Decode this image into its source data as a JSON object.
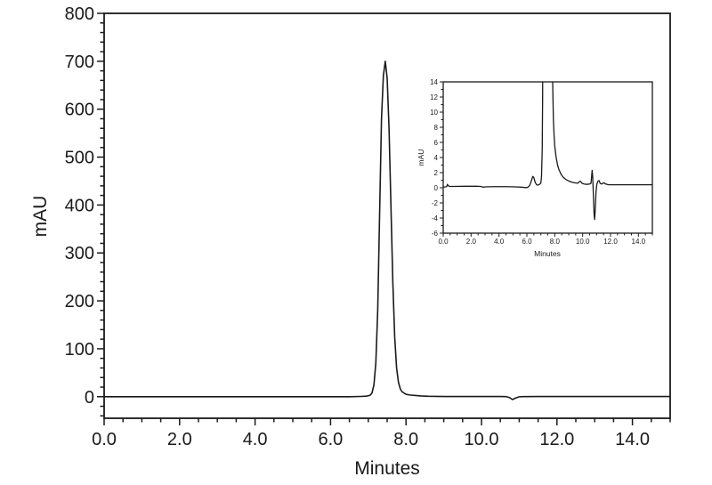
{
  "figure": {
    "background": "#ffffff",
    "line_color": "#1a1a1a",
    "description": "HPLC chromatogram with full-scale main plot and zoomed baseline inset"
  },
  "chart_data": [
    {
      "id": "main",
      "type": "line",
      "title": "",
      "xlabel": "Minutes",
      "ylabel": "mAU",
      "xlim": [
        0.0,
        15.0
      ],
      "ylim": [
        -45,
        800
      ],
      "grid": false,
      "legend": null,
      "x_major_ticks": [
        0,
        2,
        4,
        6,
        8,
        10,
        12,
        14
      ],
      "x_major_labels": [
        "0.0",
        "2.0",
        "4.0",
        "6.0",
        "8.0",
        "10.0",
        "12.0",
        "14.0"
      ],
      "x_minor_step": 0.5,
      "y_major_ticks": [
        0,
        100,
        200,
        300,
        400,
        500,
        600,
        700,
        800
      ],
      "y_major_labels": [
        "0",
        "100",
        "200",
        "300",
        "400",
        "500",
        "600",
        "700",
        "800"
      ],
      "y_minor_step": 20,
      "peaks": [
        {
          "retention_min": 7.45,
          "height_mau": 700
        },
        {
          "retention_min": 10.8,
          "height_mau": -6,
          "note": "small baseline dip"
        }
      ],
      "points": [
        [
          0.0,
          0
        ],
        [
          1.0,
          0
        ],
        [
          2.0,
          0
        ],
        [
          3.0,
          0
        ],
        [
          4.0,
          0
        ],
        [
          5.0,
          0
        ],
        [
          6.0,
          0
        ],
        [
          6.5,
          0
        ],
        [
          6.8,
          0.5
        ],
        [
          6.95,
          1
        ],
        [
          7.05,
          3
        ],
        [
          7.1,
          8
        ],
        [
          7.15,
          25
        ],
        [
          7.2,
          70
        ],
        [
          7.25,
          180
        ],
        [
          7.3,
          380
        ],
        [
          7.35,
          580
        ],
        [
          7.4,
          670
        ],
        [
          7.45,
          700
        ],
        [
          7.5,
          665
        ],
        [
          7.55,
          560
        ],
        [
          7.6,
          400
        ],
        [
          7.65,
          240
        ],
        [
          7.7,
          125
        ],
        [
          7.75,
          60
        ],
        [
          7.8,
          30
        ],
        [
          7.85,
          16
        ],
        [
          7.9,
          10
        ],
        [
          8.0,
          5
        ],
        [
          8.1,
          3.5
        ],
        [
          8.25,
          2.5
        ],
        [
          8.4,
          1.5
        ],
        [
          8.6,
          0.8
        ],
        [
          9.0,
          0.4
        ],
        [
          9.5,
          0.3
        ],
        [
          10.0,
          0.3
        ],
        [
          10.5,
          0.3
        ],
        [
          10.65,
          0.2
        ],
        [
          10.75,
          -2
        ],
        [
          10.82,
          -6
        ],
        [
          10.9,
          -3
        ],
        [
          11.0,
          -0.2
        ],
        [
          11.1,
          0.2
        ],
        [
          11.5,
          0.3
        ],
        [
          12.0,
          0.3
        ],
        [
          13.0,
          0.3
        ],
        [
          14.0,
          0.3
        ],
        [
          15.0,
          0.3
        ]
      ]
    },
    {
      "id": "inset",
      "type": "line",
      "title": "",
      "xlabel": "Minutes",
      "ylabel": "mAU",
      "xlim": [
        0.0,
        15.0
      ],
      "ylim": [
        -6,
        14
      ],
      "grid": false,
      "legend": null,
      "x_major_ticks": [
        0,
        2,
        4,
        6,
        8,
        10,
        12,
        14
      ],
      "x_major_labels": [
        "0.0",
        "2.0",
        "4.0",
        "6.0",
        "8.0",
        "10.0",
        "12.0",
        "14.0"
      ],
      "x_minor_step": 0.5,
      "y_major_ticks": [
        -6,
        -4,
        -2,
        0,
        2,
        4,
        6,
        8,
        10,
        12,
        14
      ],
      "y_major_labels": [
        "-6",
        "-4",
        "-2",
        "0",
        "2",
        "4",
        "6",
        "8",
        "10",
        "12",
        "14"
      ],
      "y_minor_step": 1,
      "peaks": [
        {
          "retention_min": 6.45,
          "height_mau": 1.5
        },
        {
          "retention_min": 7.45,
          "height_mau": 700,
          "note": "off-scale, clipped above 14"
        },
        {
          "retention_min": 9.8,
          "height_mau": 0.85
        },
        {
          "retention_min": 10.7,
          "height_mau": 2.3
        },
        {
          "retention_min": 10.86,
          "height_mau": -4.2,
          "note": "negative spike"
        },
        {
          "retention_min": 11.15,
          "height_mau": 0.95
        }
      ],
      "points": [
        [
          0.0,
          0.1
        ],
        [
          0.15,
          0.12
        ],
        [
          0.25,
          0.15
        ],
        [
          0.3,
          0.45
        ],
        [
          0.35,
          0.3
        ],
        [
          0.45,
          0.18
        ],
        [
          0.7,
          0.18
        ],
        [
          1.5,
          0.2
        ],
        [
          2.4,
          0.2
        ],
        [
          2.7,
          0.18
        ],
        [
          2.85,
          0.08
        ],
        [
          3.0,
          0.12
        ],
        [
          3.6,
          0.15
        ],
        [
          4.5,
          0.15
        ],
        [
          5.2,
          0.12
        ],
        [
          5.6,
          0.08
        ],
        [
          5.9,
          0.02
        ],
        [
          6.05,
          0.05
        ],
        [
          6.2,
          0.3
        ],
        [
          6.3,
          0.8
        ],
        [
          6.42,
          1.5
        ],
        [
          6.5,
          1.35
        ],
        [
          6.6,
          0.7
        ],
        [
          6.7,
          0.4
        ],
        [
          6.8,
          0.35
        ],
        [
          6.9,
          0.45
        ],
        [
          7.0,
          0.6
        ],
        [
          7.05,
          1.5
        ],
        [
          7.1,
          5
        ],
        [
          7.13,
          12
        ],
        [
          7.16,
          40
        ],
        [
          7.2,
          200
        ],
        [
          7.3,
          600
        ],
        [
          7.45,
          700
        ],
        [
          7.6,
          600
        ],
        [
          7.7,
          200
        ],
        [
          7.75,
          60
        ],
        [
          7.8,
          25
        ],
        [
          7.85,
          14
        ],
        [
          7.9,
          9
        ],
        [
          7.95,
          7
        ],
        [
          8.0,
          5.5
        ],
        [
          8.1,
          4
        ],
        [
          8.2,
          3
        ],
        [
          8.3,
          2.4
        ],
        [
          8.45,
          1.8
        ],
        [
          8.6,
          1.4
        ],
        [
          8.8,
          1.1
        ],
        [
          9.0,
          0.9
        ],
        [
          9.2,
          0.75
        ],
        [
          9.45,
          0.65
        ],
        [
          9.65,
          0.6
        ],
        [
          9.75,
          0.8
        ],
        [
          9.85,
          0.85
        ],
        [
          9.95,
          0.6
        ],
        [
          10.1,
          0.5
        ],
        [
          10.3,
          0.45
        ],
        [
          10.5,
          0.5
        ],
        [
          10.6,
          0.6
        ],
        [
          10.68,
          2.3
        ],
        [
          10.72,
          1.5
        ],
        [
          10.76,
          -0.5
        ],
        [
          10.82,
          -3.5
        ],
        [
          10.86,
          -4.2
        ],
        [
          10.9,
          -3.0
        ],
        [
          10.96,
          -0.5
        ],
        [
          11.02,
          0.5
        ],
        [
          11.1,
          0.9
        ],
        [
          11.18,
          0.95
        ],
        [
          11.25,
          0.6
        ],
        [
          11.35,
          0.5
        ],
        [
          11.45,
          0.6
        ],
        [
          11.55,
          0.65
        ],
        [
          11.65,
          0.5
        ],
        [
          11.8,
          0.42
        ],
        [
          12.0,
          0.4
        ],
        [
          13.0,
          0.4
        ],
        [
          14.0,
          0.4
        ],
        [
          15.0,
          0.4
        ]
      ]
    }
  ]
}
